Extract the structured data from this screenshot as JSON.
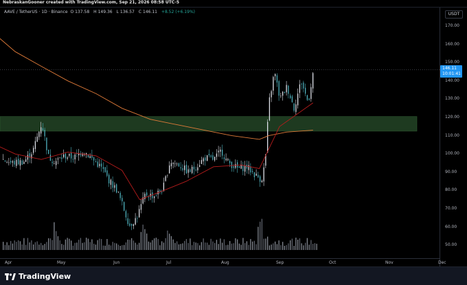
{
  "header": {
    "credit": "NebraskanGooner created with TradingView.com, Sep 21, 2026 08:58 UTC-5",
    "symbol": "AAVE / TetherUS · 1D · Binance",
    "open_label": "O",
    "open": "137.58",
    "high_label": "H",
    "high": "149.36",
    "low_label": "L",
    "low": "136.57",
    "close_label": "C",
    "close": "146.11",
    "change": "+8.52 (+6.19%)"
  },
  "price_scale": {
    "currency": "USDT",
    "ticks": [
      "170.00",
      "160.00",
      "150.00",
      "140.00",
      "130.00",
      "120.00",
      "110.00",
      "100.00",
      "90.00",
      "80.00",
      "70.00",
      "60.00",
      "50.00"
    ],
    "last_price": "146.11",
    "countdown": "10:01:41"
  },
  "time_scale": {
    "ticks": [
      "Apr",
      "May",
      "Jun",
      "Jul",
      "Aug",
      "Sep",
      "Oct",
      "Nov",
      "Dec"
    ]
  },
  "footer": {
    "brand": "TradingView"
  },
  "colors": {
    "up": "#26a69a",
    "down": "#ef5350",
    "candle_body": "#e0e3eb",
    "zone": "#1e3a20",
    "ma_long": "#e07b39",
    "ma_short": "#b71c1c",
    "accent": "#2196f3"
  },
  "chart_data": {
    "type": "candlestick",
    "y_range": [
      44,
      182
    ],
    "series": [
      {
        "name": "price",
        "kind": "close_path",
        "x": [
          "Mar 28",
          "Apr 3",
          "Apr 10",
          "Apr 15",
          "Apr 20",
          "Apr 24",
          "Apr 28",
          "May 3",
          "May 8",
          "May 13",
          "May 18",
          "May 23",
          "May 27",
          "May 31",
          "Jun 4",
          "Jun 8",
          "Jun 12",
          "Jun 17",
          "Jun 22",
          "Jun 27",
          "Jul 1",
          "Jul 6",
          "Jul 11",
          "Jul 15",
          "Jul 20",
          "Jul 25",
          "Jul 29",
          "Aug 2",
          "Aug 8",
          "Aug 13",
          "Aug 18",
          "Aug 21",
          "Aug 23",
          "Aug 25",
          "Aug 28",
          "Sep 1",
          "Sep 5",
          "Sep 9",
          "Sep 13",
          "Sep 17",
          "Sep 20"
        ],
        "values": [
          97,
          95,
          96,
          102,
          117,
          98,
          96,
          99,
          98,
          102,
          97,
          92,
          85,
          80,
          72,
          61,
          65,
          78,
          77,
          81,
          96,
          94,
          90,
          93,
          98,
          97,
          102,
          96,
          92,
          93,
          88,
          86,
          96,
          128,
          145,
          130,
          137,
          125,
          140,
          128,
          146
        ]
      }
    ],
    "zone": {
      "from": 112.5,
      "to": 120.5,
      "label": ""
    },
    "moving_averages": [
      {
        "name": "",
        "color": "#e07b39",
        "x": [
          "Mar 22",
          "Apr 5",
          "Apr 20",
          "May 5",
          "May 20",
          "Jun 4",
          "Jun 20",
          "Jul 5",
          "Jul 20",
          "Aug 5",
          "Aug 20",
          "Aug 25",
          "Sep 5",
          "Sep 20"
        ],
        "values": [
          167,
          156,
          148,
          140,
          133,
          125,
          119,
          116,
          113,
          110,
          108,
          110,
          112,
          113
        ]
      },
      {
        "name": "",
        "color": "#b71c1c",
        "x": [
          "Mar 22",
          "Apr 5",
          "Apr 20",
          "May 5",
          "May 20",
          "Jun 4",
          "Jun 14",
          "Jun 25",
          "Jul 10",
          "Jul 25",
          "Aug 10",
          "Aug 20",
          "Sep 1",
          "Sep 20"
        ],
        "values": [
          106,
          100,
          97,
          101,
          99,
          91,
          75,
          79,
          85,
          93,
          94,
          92,
          115,
          128
        ]
      }
    ],
    "volume": {
      "note": "relative volume bars",
      "peaks": [
        "Apr 27",
        "Jun 15",
        "Jul 2",
        "Aug 21"
      ]
    },
    "current_price": 146.11
  }
}
